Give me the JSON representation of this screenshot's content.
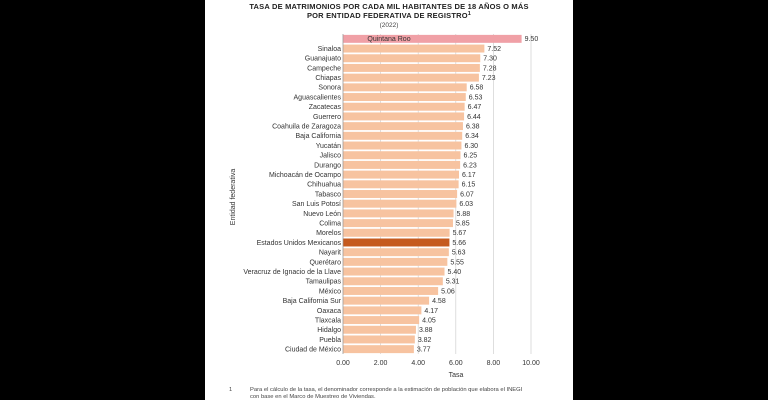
{
  "chart_data": {
    "type": "bar",
    "orientation": "horizontal",
    "title_line1": "TASA DE MATRIMONIOS POR CADA MIL HABITANTES DE 18 AÑOS O MÁS",
    "title_line2": "POR ENTIDAD FEDERATIVA DE REGISTRO",
    "title_superscript": "1",
    "subtitle": "(2022)",
    "xlabel": "Tasa",
    "ylabel": "Entidad federativa",
    "xlim": [
      0,
      10
    ],
    "xticks": [
      "0.00",
      "2.00",
      "4.00",
      "6.00",
      "8.00",
      "10.00"
    ],
    "grid": true,
    "categories": [
      "Quintana Roo",
      "Sinaloa",
      "Guanajuato",
      "Campeche",
      "Chiapas",
      "Sonora",
      "Aguascalientes",
      "Zacatecas",
      "Guerrero",
      "Coahuila de Zaragoza",
      "Baja California",
      "Yucatán",
      "Jalisco",
      "Durango",
      "Michoacán de Ocampo",
      "Chihuahua",
      "Tabasco",
      "San Luis Potosí",
      "Nuevo León",
      "Colima",
      "Morelos",
      "Estados Unidos Mexicanos",
      "Nayarit",
      "Querétaro",
      "Veracruz de Ignacio de la Llave",
      "Tamaulipas",
      "México",
      "Baja California Sur",
      "Oaxaca",
      "Tlaxcala",
      "Hidalgo",
      "Puebla",
      "Ciudad de México"
    ],
    "values": [
      9.5,
      7.52,
      7.3,
      7.28,
      7.23,
      6.58,
      6.53,
      6.47,
      6.44,
      6.38,
      6.34,
      6.3,
      6.25,
      6.23,
      6.17,
      6.15,
      6.07,
      6.03,
      5.88,
      5.85,
      5.67,
      5.66,
      5.63,
      5.55,
      5.4,
      5.31,
      5.06,
      4.58,
      4.17,
      4.05,
      3.88,
      3.82,
      3.77
    ],
    "value_labels": [
      "9.50",
      "7.52",
      "7.30",
      "7.28",
      "7.23",
      "6.58",
      "6.53",
      "6.47",
      "6.44",
      "6.38",
      "6.34",
      "6.30",
      "6.25",
      "6.23",
      "6.17",
      "6.15",
      "6.07",
      "6.03",
      "5.88",
      "5.85",
      "5.67",
      "5.66",
      "5.63",
      "5.55",
      "5.40",
      "5.31",
      "5.06",
      "4.58",
      "4.17",
      "4.05",
      "3.88",
      "3.82",
      "3.77"
    ],
    "highlighted": {
      "Quintana Roo": "top",
      "Estados Unidos Mexicanos": "national"
    },
    "colors": {
      "bar": "#f7c3a0",
      "top": "#f0a0a6",
      "national": "#c55a1f",
      "grid": "#d0d0d0"
    },
    "footnote_number": "1",
    "footnote_line1": "Para el cálculo de la tasa, el denominador corresponde a la estimación de población que elabora el INEGI",
    "footnote_line2": "con base en el Marco de Muestreo de Viviendas."
  }
}
